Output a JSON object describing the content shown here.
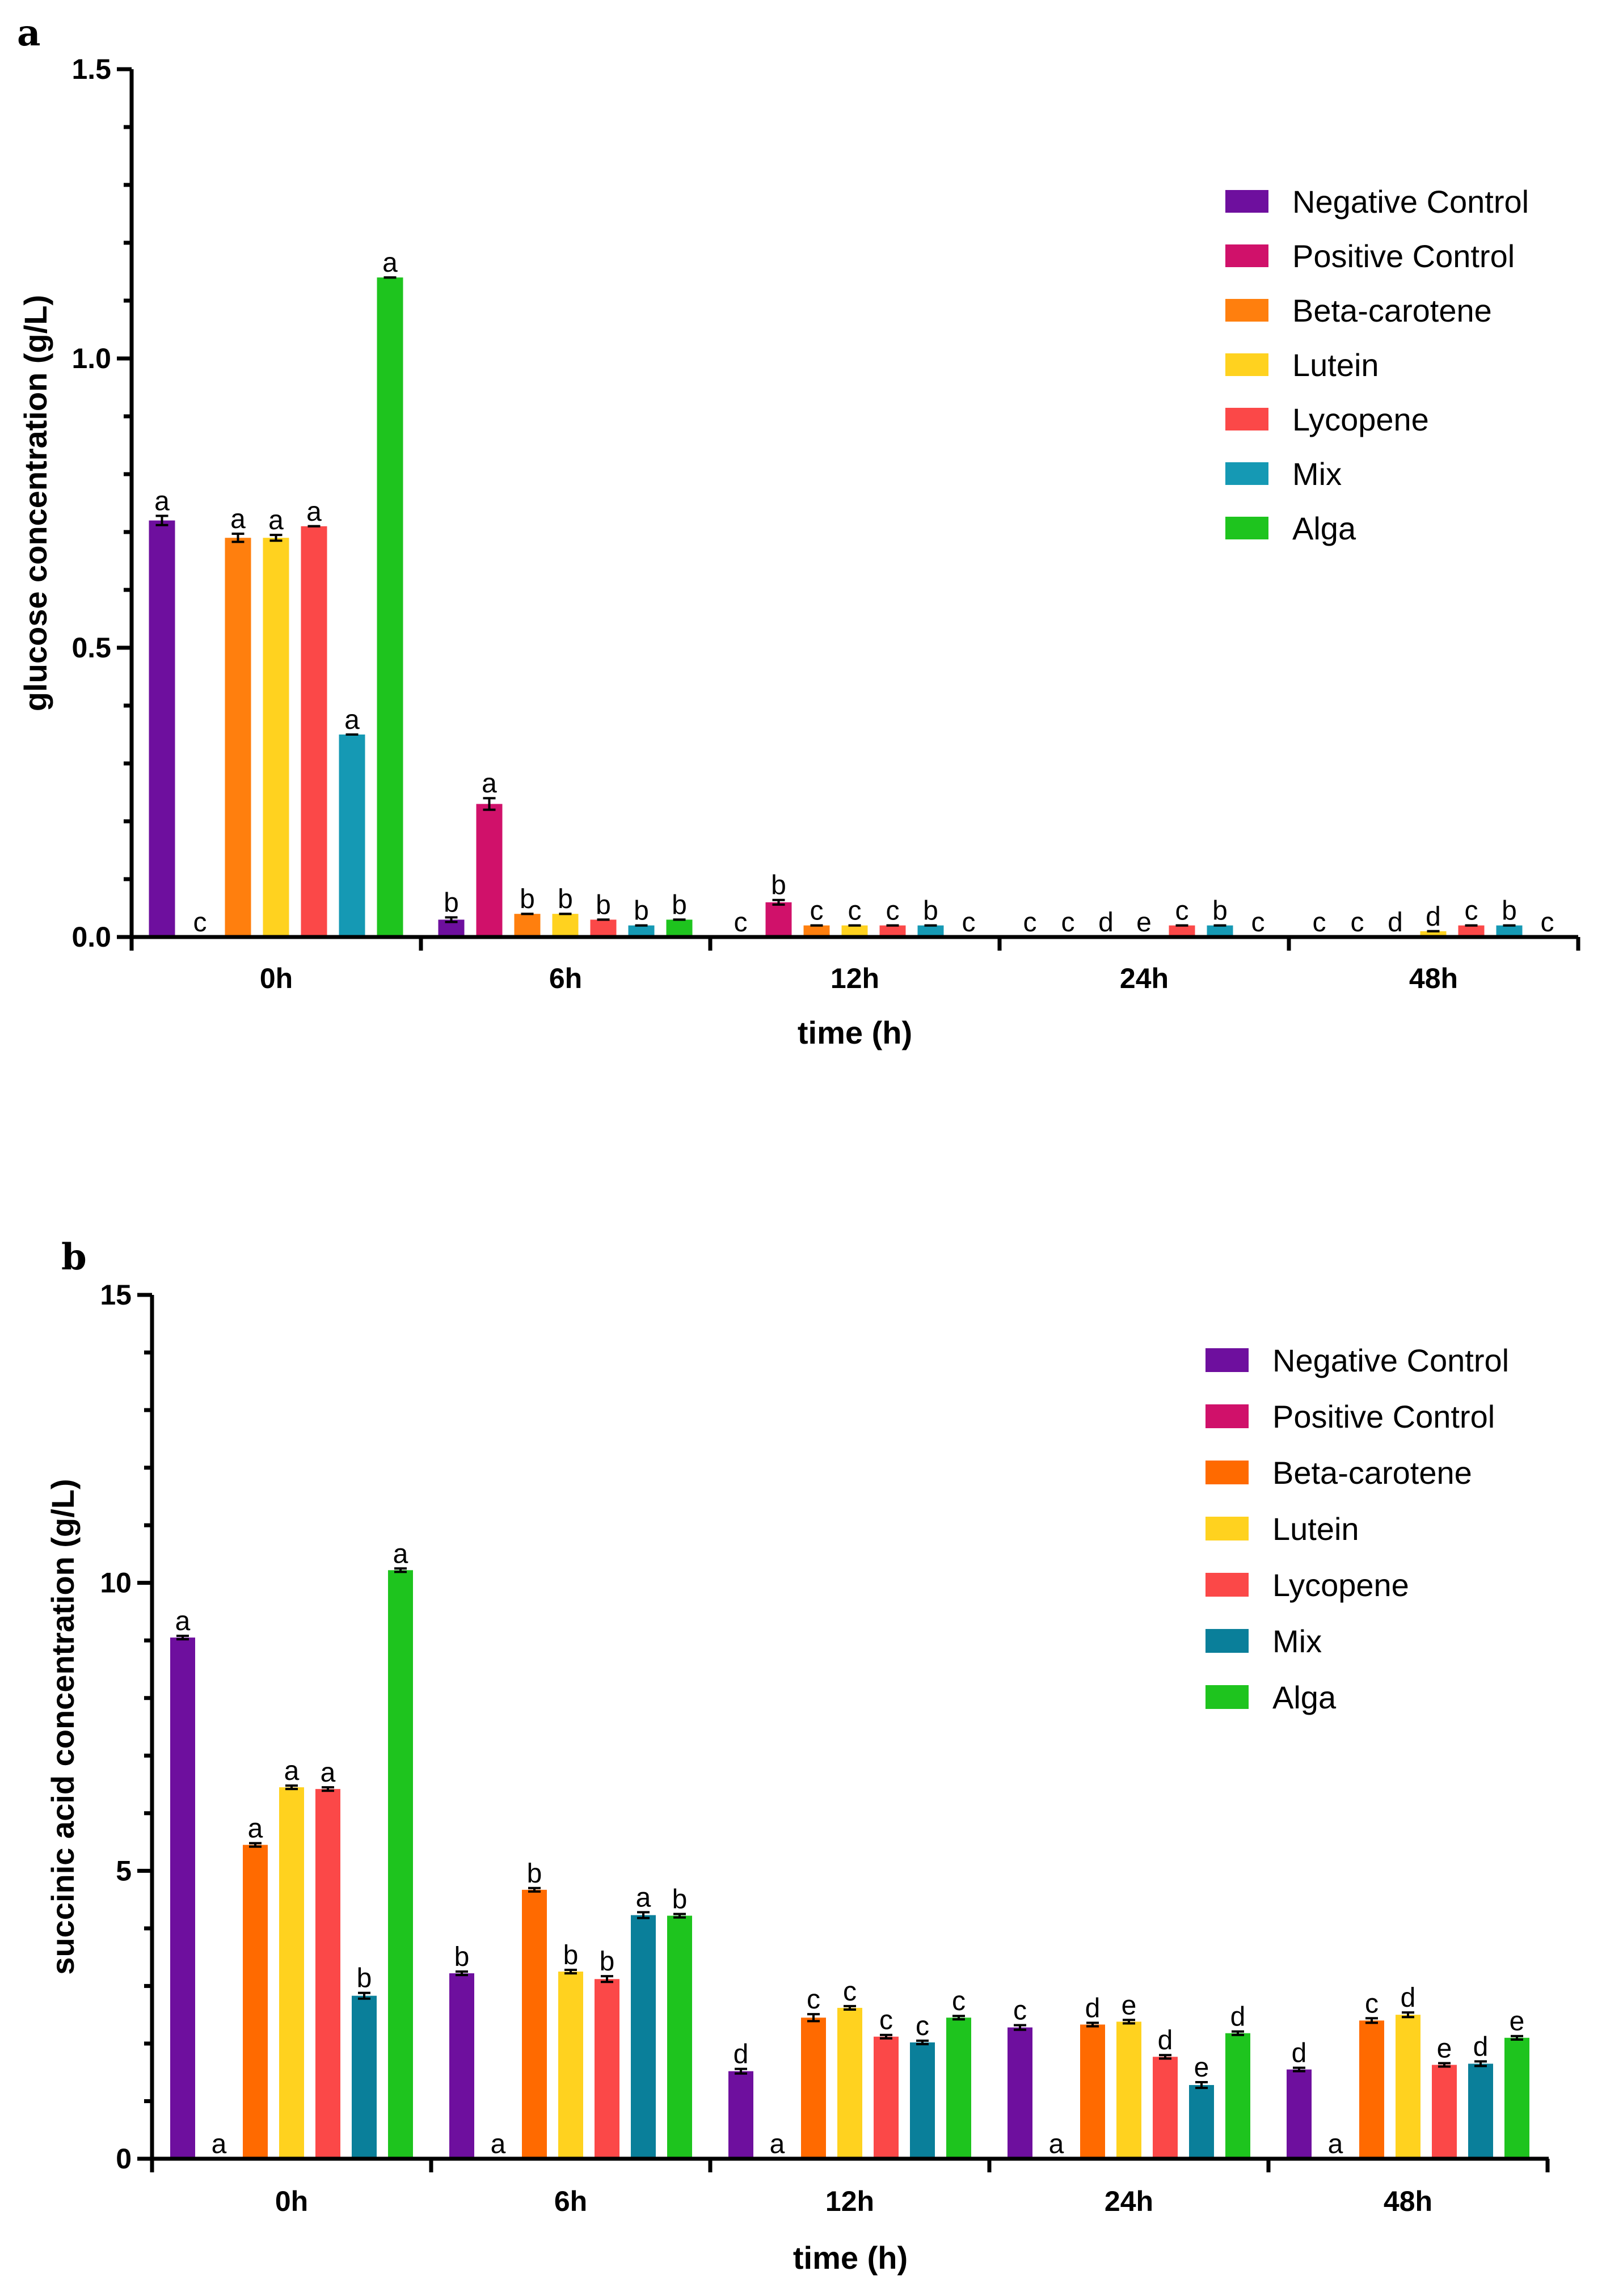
{
  "chart_data": [
    {
      "type": "bar",
      "panel": "a",
      "categories": [
        "0h",
        "6h",
        "12h",
        "24h",
        "48h"
      ],
      "xlabel": "time (h)",
      "ylabel": "glucose concentration (g/L)",
      "ylim": [
        0,
        1.5
      ],
      "yticks": [
        0.0,
        0.5,
        1.0,
        1.5
      ],
      "ytick_labels": [
        "0.0",
        "0.5",
        "1.0",
        "1.5"
      ],
      "legend_position": "top-right",
      "series": [
        {
          "name": "Negative Control",
          "color": "#6e0f9e",
          "values": [
            0.72,
            0.03,
            0.0,
            0.0,
            0.0
          ],
          "errors": [
            0.008,
            0.004,
            0,
            0,
            0
          ],
          "letters": [
            "a",
            "b",
            "c",
            "c",
            "c"
          ]
        },
        {
          "name": "Positive Control",
          "color": "#d0116a",
          "values": [
            0.0,
            0.23,
            0.06,
            0.0,
            0.0
          ],
          "errors": [
            0,
            0.01,
            0.004,
            0,
            0
          ],
          "letters": [
            "c",
            "a",
            "b",
            "c",
            "c"
          ]
        },
        {
          "name": "Beta-carotene",
          "color": "#ff7f0e",
          "values": [
            0.69,
            0.04,
            0.02,
            0.0,
            0.0
          ],
          "errors": [
            0.007,
            0,
            0,
            0,
            0
          ],
          "letters": [
            "a",
            "b",
            "c",
            "d",
            "d"
          ]
        },
        {
          "name": "Lutein",
          "color": "#ffd21f",
          "values": [
            0.69,
            0.04,
            0.02,
            0.0,
            0.01
          ],
          "errors": [
            0.005,
            0,
            0,
            0,
            0
          ],
          "letters": [
            "a",
            "b",
            "c",
            "e",
            "d"
          ]
        },
        {
          "name": "Lycopene",
          "color": "#fb4848",
          "values": [
            0.71,
            0.03,
            0.02,
            0.02,
            0.02
          ],
          "errors": [
            0,
            0,
            0,
            0,
            0
          ],
          "letters": [
            "a",
            "b",
            "c",
            "c",
            "c"
          ]
        },
        {
          "name": "Mix",
          "color": "#1599b4",
          "values": [
            0.35,
            0.02,
            0.02,
            0.02,
            0.02
          ],
          "errors": [
            0,
            0,
            0,
            0,
            0
          ],
          "letters": [
            "a",
            "b",
            "b",
            "b",
            "b"
          ]
        },
        {
          "name": "Alga",
          "color": "#1ec41e",
          "values": [
            1.14,
            0.03,
            0.0,
            0.0,
            0.0
          ],
          "errors": [
            0,
            0,
            0,
            0,
            0
          ],
          "letters": [
            "a",
            "b",
            "c",
            "c",
            "c"
          ]
        }
      ]
    },
    {
      "type": "bar",
      "panel": "b",
      "categories": [
        "0h",
        "6h",
        "12h",
        "24h",
        "48h"
      ],
      "xlabel": "time (h)",
      "ylabel": "succinic acid concentration (g/L)",
      "ylim": [
        0,
        15
      ],
      "yticks": [
        0,
        5,
        10,
        15
      ],
      "ytick_labels": [
        "0",
        "5",
        "10",
        "15"
      ],
      "legend_position": "top-right",
      "series": [
        {
          "name": "Negative Control",
          "color": "#6e0f9e",
          "values": [
            9.05,
            3.22,
            1.52,
            2.28,
            1.55
          ],
          "errors": [
            0.03,
            0.03,
            0.04,
            0.04,
            0.03
          ],
          "letters": [
            "a",
            "b",
            "d",
            "c",
            "d"
          ]
        },
        {
          "name": "Positive Control",
          "color": "#d0116a",
          "values": [
            0.0,
            0.0,
            0.0,
            0.0,
            0.0
          ],
          "errors": [
            0,
            0,
            0,
            0,
            0
          ],
          "letters": [
            "a",
            "a",
            "a",
            "a",
            "a"
          ]
        },
        {
          "name": "Beta-carotene",
          "color": "#ff6a00",
          "values": [
            5.45,
            4.67,
            2.45,
            2.33,
            2.4
          ],
          "errors": [
            0.03,
            0.03,
            0.06,
            0.03,
            0.04
          ],
          "letters": [
            "a",
            "b",
            "c",
            "d",
            "c"
          ]
        },
        {
          "name": "Lutein",
          "color": "#ffd21f",
          "values": [
            6.45,
            3.25,
            2.62,
            2.38,
            2.5
          ],
          "errors": [
            0.03,
            0.03,
            0.03,
            0.03,
            0.04
          ],
          "letters": [
            "a",
            "b",
            "c",
            "e",
            "d"
          ]
        },
        {
          "name": "Lycopene",
          "color": "#fb4848",
          "values": [
            6.42,
            3.12,
            2.12,
            1.77,
            1.63
          ],
          "errors": [
            0.03,
            0.05,
            0.03,
            0.03,
            0.03
          ],
          "letters": [
            "a",
            "b",
            "c",
            "d",
            "e"
          ]
        },
        {
          "name": "Mix",
          "color": "#0a7f9a",
          "values": [
            2.83,
            4.23,
            2.02,
            1.28,
            1.65
          ],
          "errors": [
            0.05,
            0.05,
            0.03,
            0.05,
            0.04
          ],
          "letters": [
            "b",
            "a",
            "c",
            "e",
            "d"
          ]
        },
        {
          "name": "Alga",
          "color": "#1ec41e",
          "values": [
            10.22,
            4.22,
            2.45,
            2.18,
            2.1
          ],
          "errors": [
            0.03,
            0.03,
            0.03,
            0.03,
            0.03
          ],
          "letters": [
            "a",
            "b",
            "c",
            "d",
            "e"
          ]
        }
      ]
    }
  ]
}
